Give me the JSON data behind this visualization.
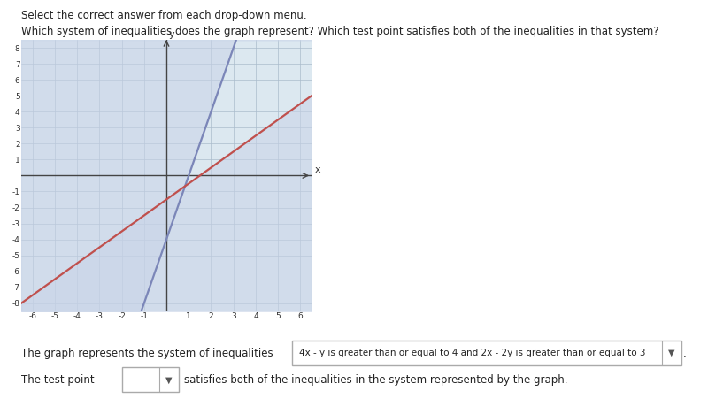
{
  "header": "Select the correct answer from each drop-down menu.",
  "question": "Which system of inequalities does the graph represent? Which test point satisfies both of the inequalities in that system?",
  "xlim": [
    -6.5,
    6.5
  ],
  "ylim": [
    -8.5,
    8.5
  ],
  "xticks": [
    -6,
    -5,
    -4,
    -3,
    -2,
    -1,
    1,
    2,
    3,
    4,
    5,
    6
  ],
  "yticks": [
    -8,
    -7,
    -6,
    -5,
    -4,
    -3,
    -2,
    -1,
    1,
    2,
    3,
    4,
    5,
    6,
    7,
    8
  ],
  "blue_line": {
    "slope": 4,
    "intercept": -4,
    "color": "#7b86b8"
  },
  "red_line": {
    "slope": 1,
    "intercept": -1.5,
    "color": "#c0504d"
  },
  "shade_color_upper": "#c8d3e8",
  "shade_color_lower": "#d5c8c8",
  "shade_alpha": 0.55,
  "background_color": "#ffffff",
  "graph_bg": "#dce8f0",
  "grid_color": "#aabccc",
  "footer_text1": "The graph represents the system of inequalities",
  "footer_box_text": "4x - y is greater than or equal to 4 and 2x - 2y is greater than or equal to 3",
  "footer_text2": "The test point",
  "footer_text3": "satisfies both of the inequalities in the system represented by the graph."
}
